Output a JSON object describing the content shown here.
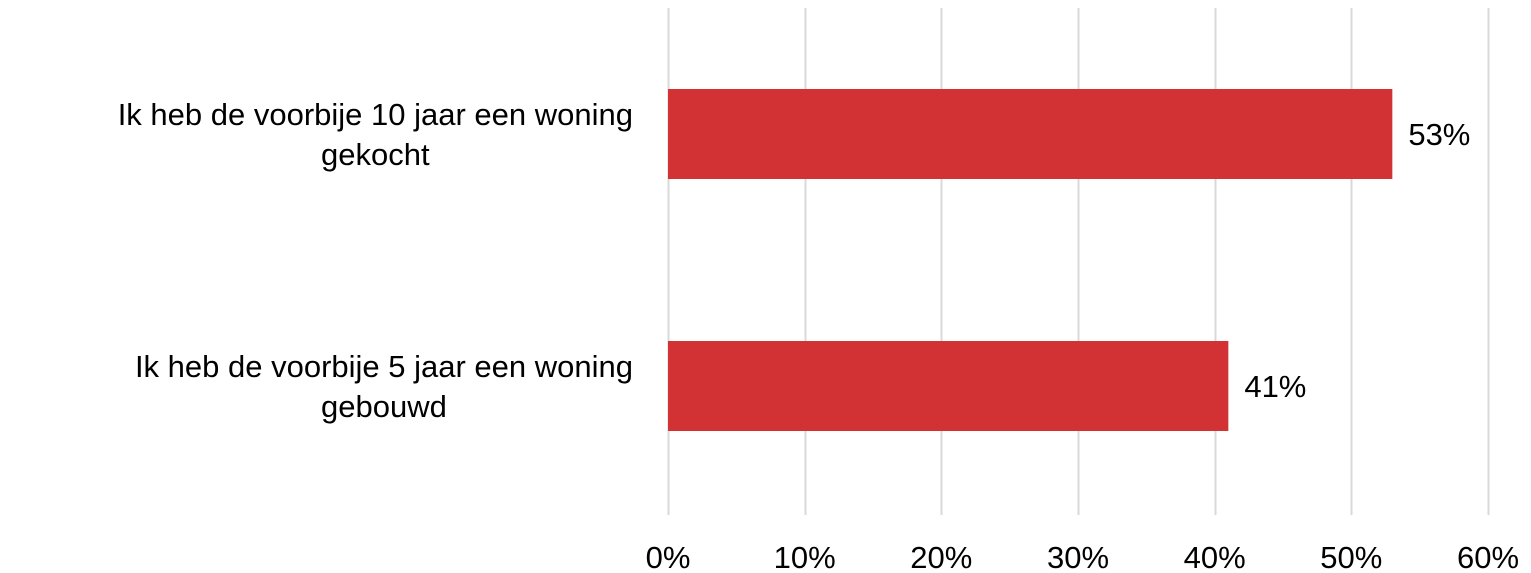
{
  "chart_data": {
    "type": "bar",
    "orientation": "horizontal",
    "categories": [
      [
        "Ik heb de voorbije 10 jaar een woning",
        "gekocht"
      ],
      [
        "Ik heb de voorbije 5 jaar een woning",
        "gebouwd"
      ]
    ],
    "values": [
      53,
      41
    ],
    "data_labels": [
      "53%",
      "41%"
    ],
    "xlim": [
      0,
      60
    ],
    "x_ticks": [
      0,
      10,
      20,
      30,
      40,
      50,
      60
    ],
    "x_tick_labels": [
      "0%",
      "10%",
      "20%",
      "30%",
      "40%",
      "50%",
      "60%"
    ],
    "grid": "vertical",
    "legend": "none",
    "bar_color": "#d33234",
    "grid_color": "#d9d9d9"
  }
}
